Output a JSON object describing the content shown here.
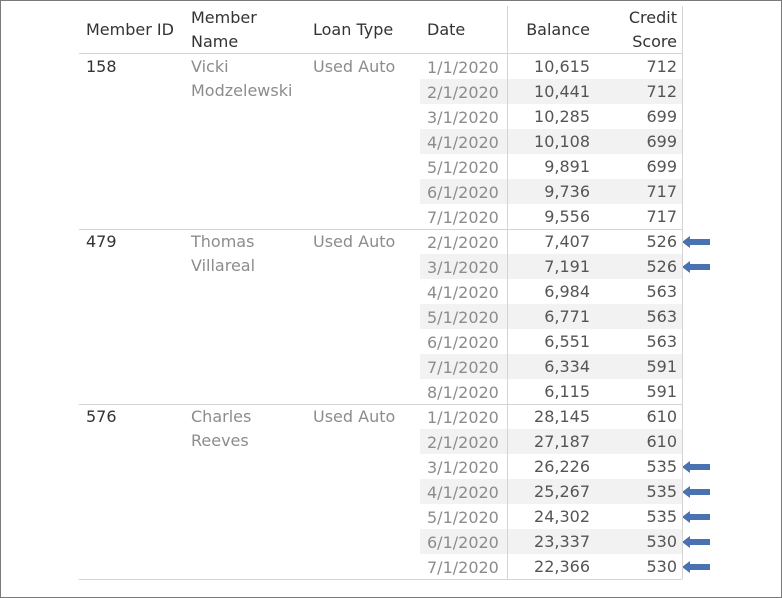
{
  "headers": {
    "member_id": "Member ID",
    "member_name_1": "Member",
    "member_name_2": "Name",
    "loan_type": "Loan Type",
    "date": "Date",
    "balance": "Balance",
    "credit_score_1": "Credit",
    "credit_score_2": "Score"
  },
  "colors": {
    "arrow": "#4a72b0",
    "stripe": "#f2f2f2",
    "rule": "#d4d4d4"
  },
  "groups": [
    {
      "member_id": "158",
      "name_line1": "Vicki",
      "name_line2": "Modzelewski",
      "loan_type": "Used Auto",
      "rows": [
        {
          "date": "1/1/2020",
          "balance": "10,615",
          "score": "712",
          "flag": false
        },
        {
          "date": "2/1/2020",
          "balance": "10,441",
          "score": "712",
          "flag": false
        },
        {
          "date": "3/1/2020",
          "balance": "10,285",
          "score": "699",
          "flag": false
        },
        {
          "date": "4/1/2020",
          "balance": "10,108",
          "score": "699",
          "flag": false
        },
        {
          "date": "5/1/2020",
          "balance": "9,891",
          "score": "699",
          "flag": false
        },
        {
          "date": "6/1/2020",
          "balance": "9,736",
          "score": "717",
          "flag": false
        },
        {
          "date": "7/1/2020",
          "balance": "9,556",
          "score": "717",
          "flag": false
        }
      ]
    },
    {
      "member_id": "479",
      "name_line1": "Thomas",
      "name_line2": "Villareal",
      "loan_type": "Used Auto",
      "rows": [
        {
          "date": "2/1/2020",
          "balance": "7,407",
          "score": "526",
          "flag": true
        },
        {
          "date": "3/1/2020",
          "balance": "7,191",
          "score": "526",
          "flag": true
        },
        {
          "date": "4/1/2020",
          "balance": "6,984",
          "score": "563",
          "flag": false
        },
        {
          "date": "5/1/2020",
          "balance": "6,771",
          "score": "563",
          "flag": false
        },
        {
          "date": "6/1/2020",
          "balance": "6,551",
          "score": "563",
          "flag": false
        },
        {
          "date": "7/1/2020",
          "balance": "6,334",
          "score": "591",
          "flag": false
        },
        {
          "date": "8/1/2020",
          "balance": "6,115",
          "score": "591",
          "flag": false
        }
      ]
    },
    {
      "member_id": "576",
      "name_line1": "Charles",
      "name_line2": "Reeves",
      "loan_type": "Used Auto",
      "rows": [
        {
          "date": "1/1/2020",
          "balance": "28,145",
          "score": "610",
          "flag": false
        },
        {
          "date": "2/1/2020",
          "balance": "27,187",
          "score": "610",
          "flag": false
        },
        {
          "date": "3/1/2020",
          "balance": "26,226",
          "score": "535",
          "flag": true
        },
        {
          "date": "4/1/2020",
          "balance": "25,267",
          "score": "535",
          "flag": true
        },
        {
          "date": "5/1/2020",
          "balance": "24,302",
          "score": "535",
          "flag": true
        },
        {
          "date": "6/1/2020",
          "balance": "23,337",
          "score": "530",
          "flag": true
        },
        {
          "date": "7/1/2020",
          "balance": "22,366",
          "score": "530",
          "flag": true
        }
      ]
    }
  ],
  "chart_data": {
    "type": "table",
    "columns": [
      "Member ID",
      "Member Name",
      "Loan Type",
      "Date",
      "Balance",
      "Credit Score"
    ],
    "rows": [
      [
        "158",
        "Vicki Modzelewski",
        "Used Auto",
        "1/1/2020",
        10615,
        712
      ],
      [
        "158",
        "Vicki Modzelewski",
        "Used Auto",
        "2/1/2020",
        10441,
        712
      ],
      [
        "158",
        "Vicki Modzelewski",
        "Used Auto",
        "3/1/2020",
        10285,
        699
      ],
      [
        "158",
        "Vicki Modzelewski",
        "Used Auto",
        "4/1/2020",
        10108,
        699
      ],
      [
        "158",
        "Vicki Modzelewski",
        "Used Auto",
        "5/1/2020",
        9891,
        699
      ],
      [
        "158",
        "Vicki Modzelewski",
        "Used Auto",
        "6/1/2020",
        9736,
        717
      ],
      [
        "158",
        "Vicki Modzelewski",
        "Used Auto",
        "7/1/2020",
        9556,
        717
      ],
      [
        "479",
        "Thomas Villareal",
        "Used Auto",
        "2/1/2020",
        7407,
        526
      ],
      [
        "479",
        "Thomas Villareal",
        "Used Auto",
        "3/1/2020",
        7191,
        526
      ],
      [
        "479",
        "Thomas Villareal",
        "Used Auto",
        "4/1/2020",
        6984,
        563
      ],
      [
        "479",
        "Thomas Villareal",
        "Used Auto",
        "5/1/2020",
        6771,
        563
      ],
      [
        "479",
        "Thomas Villareal",
        "Used Auto",
        "6/1/2020",
        6551,
        563
      ],
      [
        "479",
        "Thomas Villareal",
        "Used Auto",
        "7/1/2020",
        6334,
        591
      ],
      [
        "479",
        "Thomas Villareal",
        "Used Auto",
        "8/1/2020",
        6115,
        591
      ],
      [
        "576",
        "Charles Reeves",
        "Used Auto",
        "1/1/2020",
        28145,
        610
      ],
      [
        "576",
        "Charles Reeves",
        "Used Auto",
        "2/1/2020",
        27187,
        610
      ],
      [
        "576",
        "Charles Reeves",
        "Used Auto",
        "3/1/2020",
        26226,
        535
      ],
      [
        "576",
        "Charles Reeves",
        "Used Auto",
        "4/1/2020",
        25267,
        535
      ],
      [
        "576",
        "Charles Reeves",
        "Used Auto",
        "5/1/2020",
        24302,
        535
      ],
      [
        "576",
        "Charles Reeves",
        "Used Auto",
        "6/1/2020",
        23337,
        530
      ],
      [
        "576",
        "Charles Reeves",
        "Used Auto",
        "7/1/2020",
        22366,
        530
      ]
    ]
  }
}
